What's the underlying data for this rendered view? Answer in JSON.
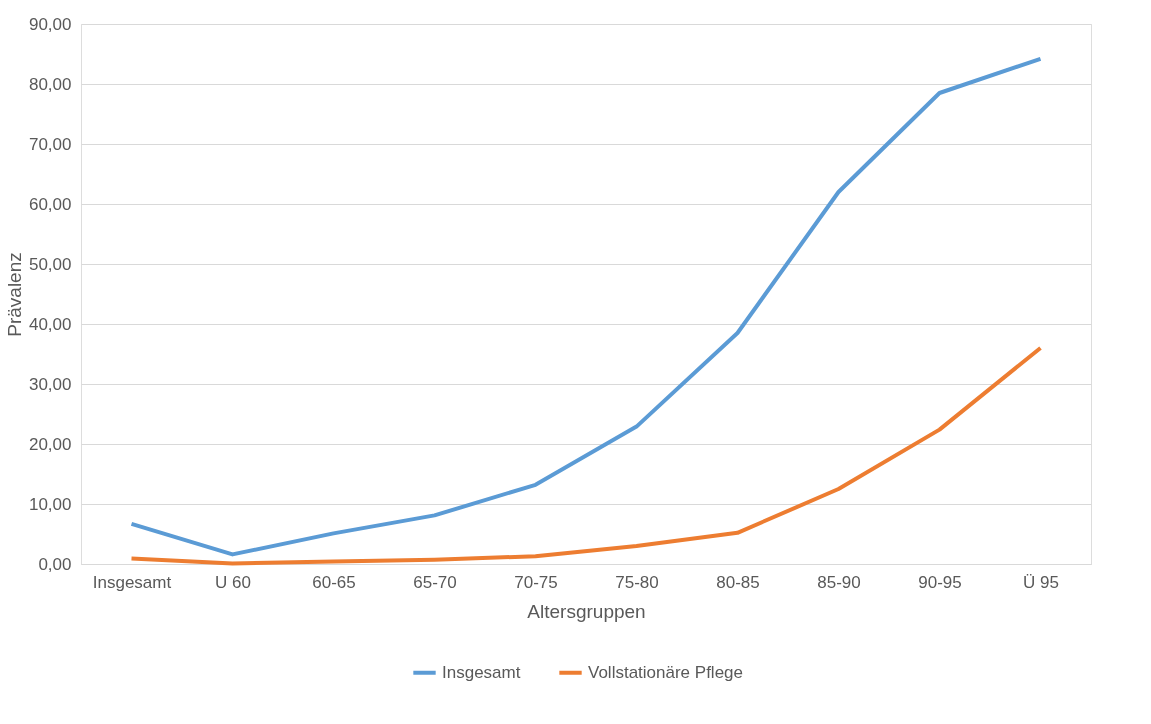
{
  "chart_data": {
    "type": "line",
    "xlabel": "Altersgruppen",
    "ylabel": "Prävalenz",
    "categories": [
      "Insgesamt",
      "U 60",
      "60-65",
      "65-70",
      "70-75",
      "75-80",
      "80-85",
      "85-90",
      "90-95",
      "Ü 95"
    ],
    "series": [
      {
        "name": "Insgesamt",
        "color": "#5b9bd5",
        "values": [
          6.7,
          1.6,
          5.1,
          8.1,
          13.2,
          22.9,
          38.5,
          62.0,
          78.5,
          84.2
        ]
      },
      {
        "name": "Vollstationäre Pflege",
        "color": "#ed7d31",
        "values": [
          0.9,
          0.1,
          0.4,
          0.7,
          1.3,
          3.0,
          5.2,
          12.5,
          22.4,
          36.0
        ]
      }
    ],
    "ylim": [
      0,
      90
    ],
    "yticks": [
      {
        "value": 0,
        "label": "0,00"
      },
      {
        "value": 10,
        "label": "10,00"
      },
      {
        "value": 20,
        "label": "20,00"
      },
      {
        "value": 30,
        "label": "30,00"
      },
      {
        "value": 40,
        "label": "40,00"
      },
      {
        "value": 50,
        "label": "50,00"
      },
      {
        "value": 60,
        "label": "60,00"
      },
      {
        "value": 70,
        "label": "70,00"
      },
      {
        "value": 80,
        "label": "80,00"
      },
      {
        "value": 90,
        "label": "90,00"
      }
    ],
    "grid": "y",
    "legend": "bottom",
    "marker": "none",
    "line_style": "solid"
  }
}
